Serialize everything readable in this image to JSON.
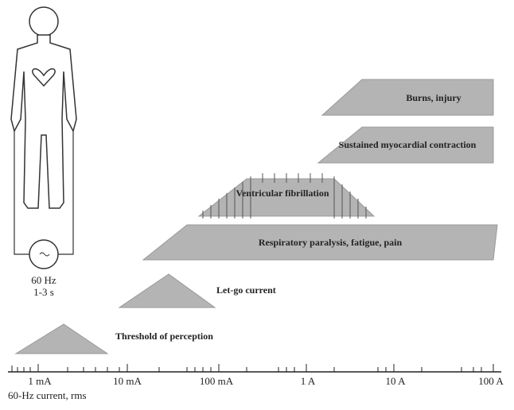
{
  "figure": {
    "source_label": "60 Hz",
    "duration_label": "1-3 s"
  },
  "effects": [
    "Threshold of perception",
    "Let-go current",
    "Respiratory paralysis, fatigue, pain",
    "Ventricular fibrillation",
    "Sustained myocardial contraction",
    "Burns, injury"
  ],
  "axis": {
    "ticks": [
      "1 mA",
      "10 mA",
      "100 mA",
      "1 A",
      "10 A",
      "100 A"
    ],
    "title": "60-Hz current, rms"
  }
}
